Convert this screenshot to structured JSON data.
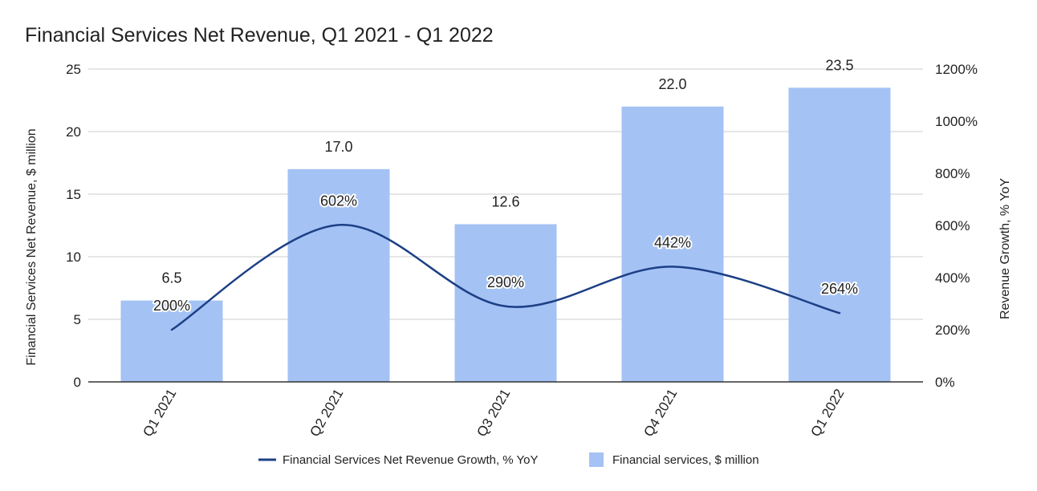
{
  "chart_data": {
    "type": "bar",
    "title": "Financial Services Net Revenue, Q1 2021 - Q1 2022",
    "categories": [
      "Q1 2021",
      "Q2 2021",
      "Q3 2021",
      "Q4 2021",
      "Q1 2022"
    ],
    "series": [
      {
        "name": "Financial services, $ million",
        "type": "bar",
        "axis": "left",
        "values": [
          6.5,
          17.0,
          12.6,
          22.0,
          23.5
        ],
        "labels": [
          "6.5",
          "17.0",
          "12.6",
          "22.0",
          "23.5"
        ],
        "color": "#a4c2f4"
      },
      {
        "name": "Financial Services Net Revenue Growth, % YoY",
        "type": "line",
        "axis": "right",
        "values": [
          200,
          602,
          290,
          442,
          264
        ],
        "labels": [
          "200%",
          "602%",
          "290%",
          "442%",
          "264%"
        ],
        "color": "#1c3f86"
      }
    ],
    "ylabel": "Financial Services Net Revenue, $ million",
    "ylabel_right": "Revenue Growth, % YoY",
    "ylim": [
      0,
      25
    ],
    "ylim_right": [
      0,
      1200
    ],
    "yticks": [
      "0",
      "5",
      "10",
      "15",
      "20",
      "25"
    ],
    "yticks_right": [
      "0%",
      "200%",
      "400%",
      "600%",
      "800%",
      "1000%",
      "1200%"
    ],
    "grid": true,
    "legend_position": "bottom"
  }
}
